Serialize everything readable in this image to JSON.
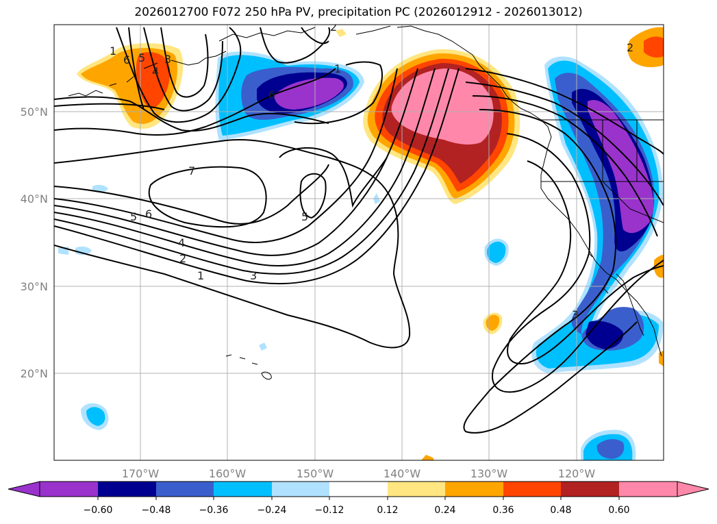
{
  "title": "2026012700 F072 250 hPa PV, precipitation PC (2026012912 - 2026013012)",
  "axes": {
    "lon_labels": [
      "170°W",
      "160°W",
      "150°W",
      "140°W",
      "130°W",
      "120°W"
    ],
    "lat_labels": [
      "50°N",
      "40°N",
      "30°N",
      "20°N"
    ]
  },
  "colorbar": {
    "colors": [
      "#9933cc",
      "#000090",
      "#3a5fcd",
      "#00bfff",
      "#b0e2ff",
      "#ffffff",
      "#ffe680",
      "#ffa500",
      "#ff4500",
      "#b22222",
      "#ff88aa"
    ],
    "labels": [
      "−0.60",
      "−0.48",
      "−0.36",
      "−0.24",
      "−0.12",
      "0.12",
      "0.24",
      "0.36",
      "0.48",
      "0.60"
    ]
  },
  "contour_labels": [
    "7",
    "6",
    "5",
    "4",
    "3",
    "2",
    "1",
    "5",
    "6",
    "4",
    "2",
    "1",
    "3",
    "5",
    "3",
    "2",
    "6",
    "1"
  ]
}
